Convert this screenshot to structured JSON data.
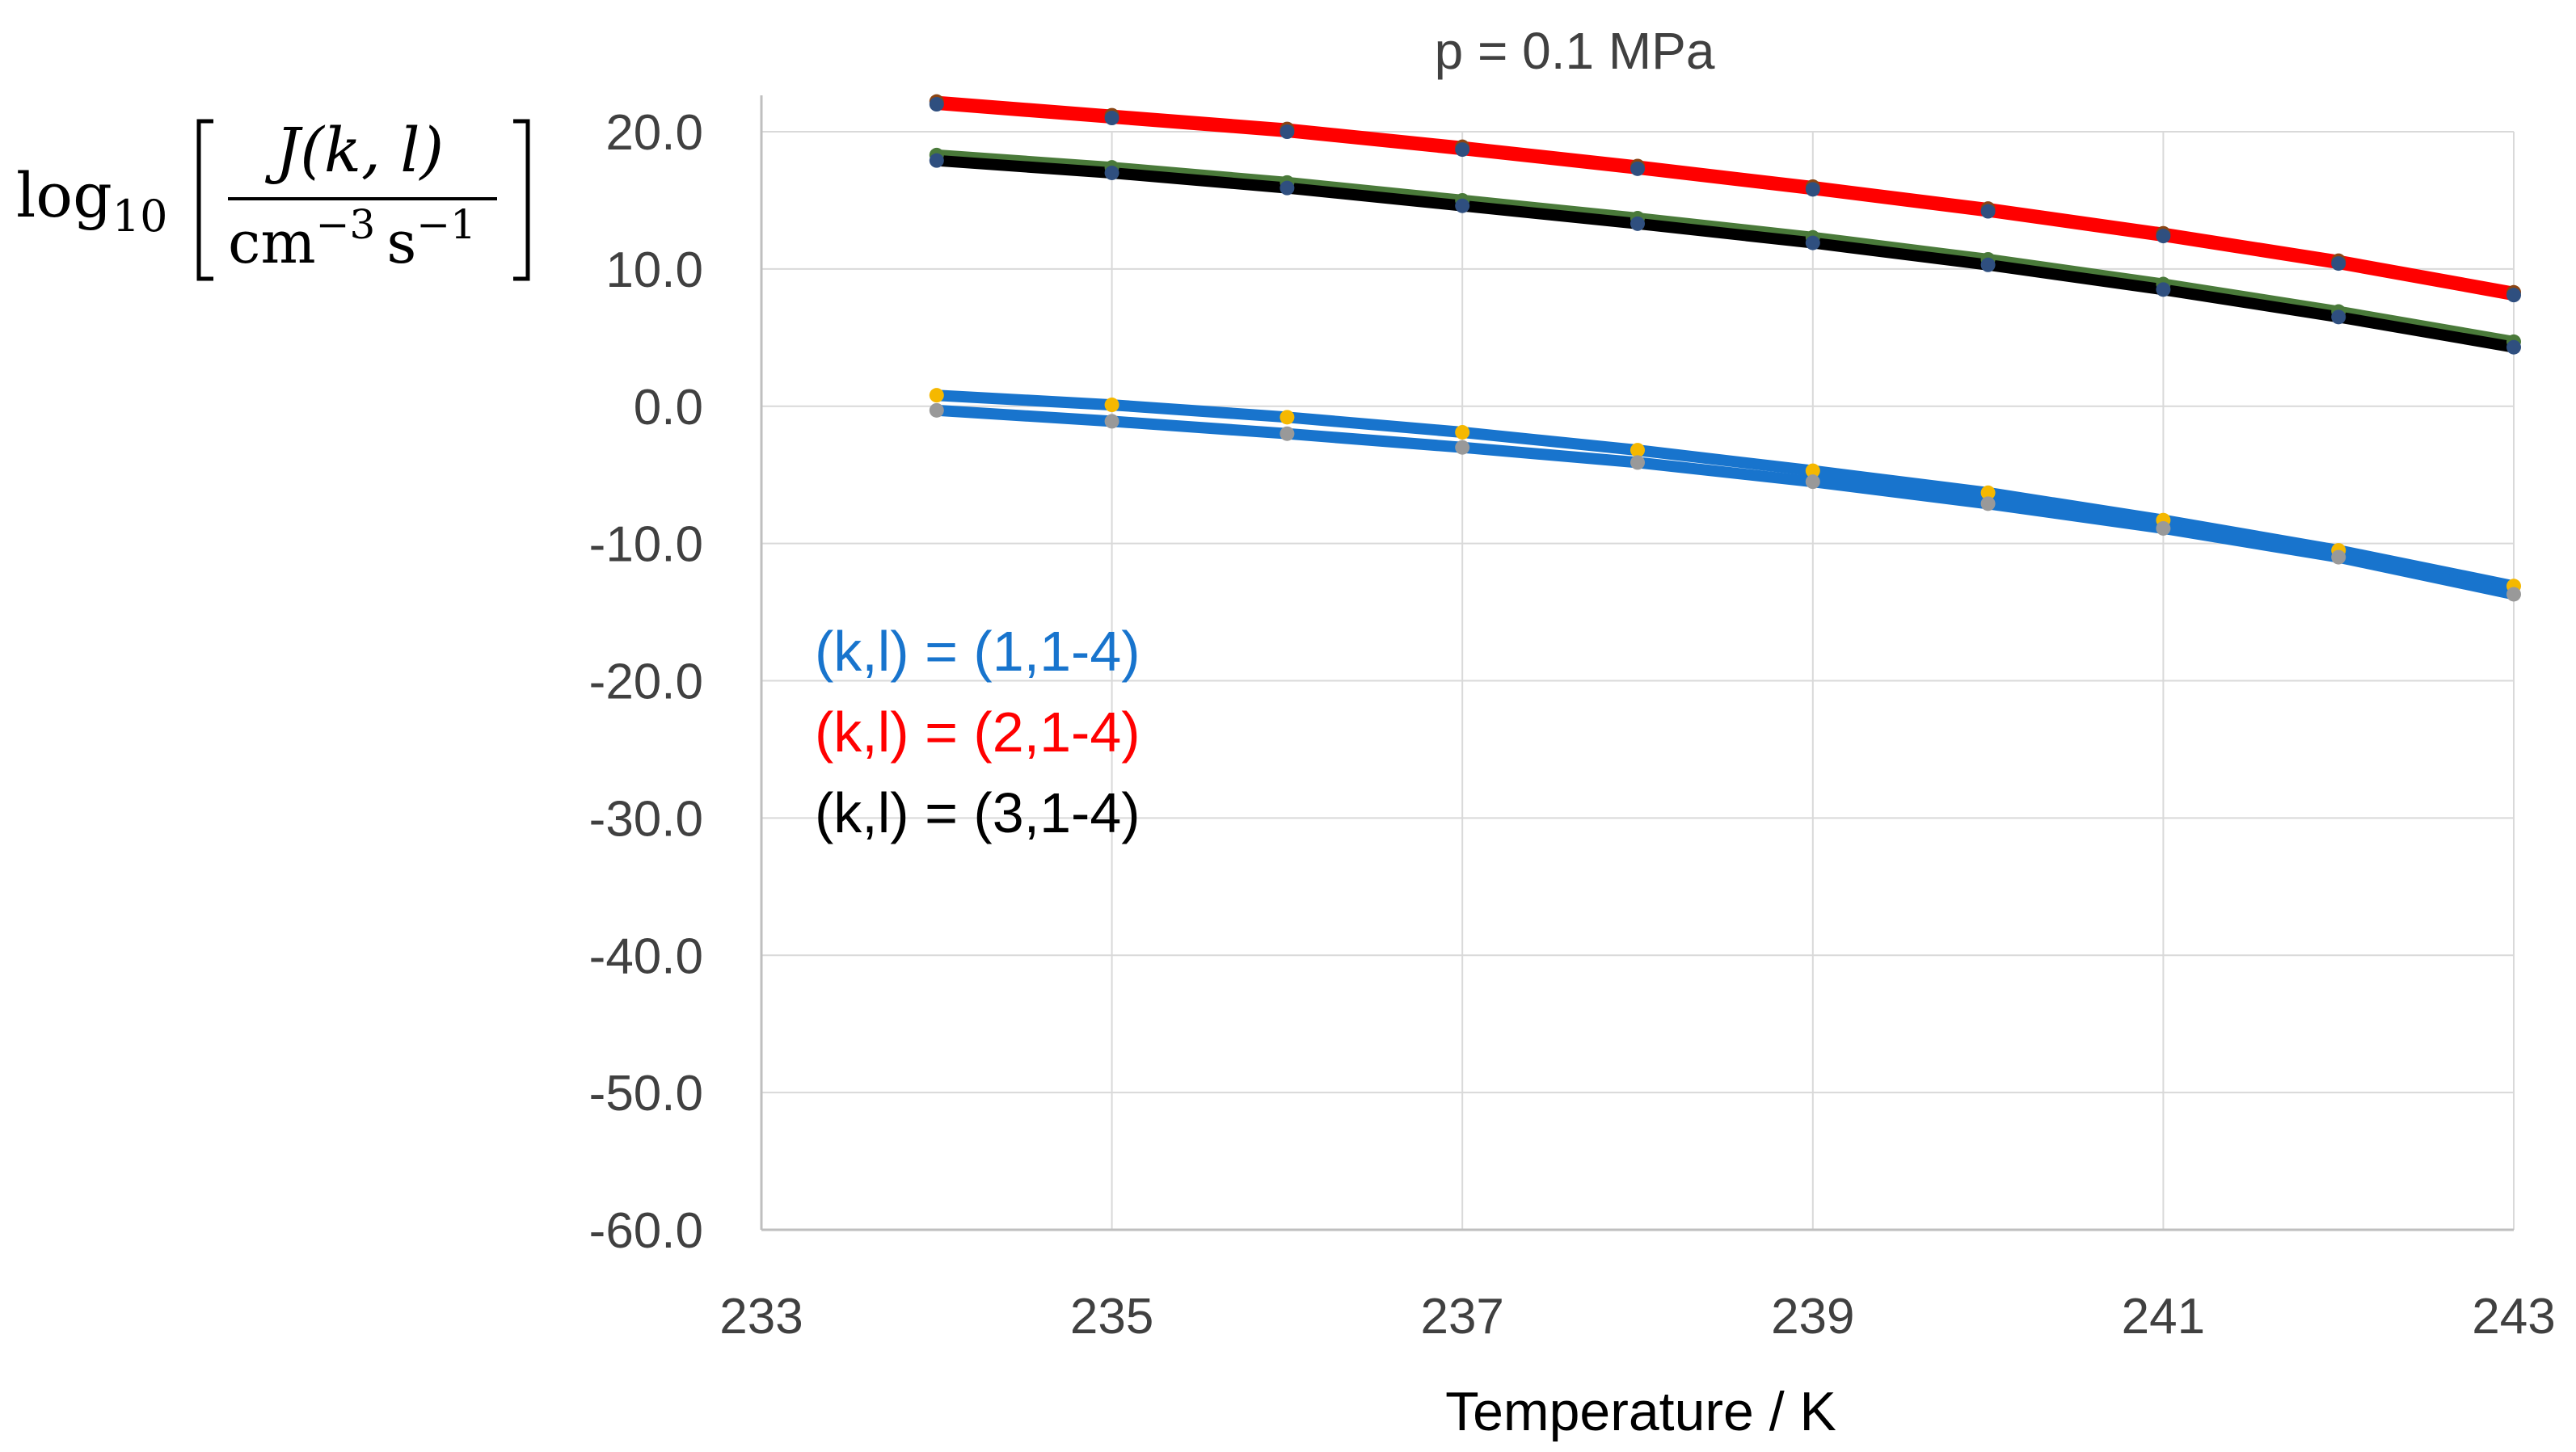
{
  "chart_data": {
    "type": "line",
    "title": "p = 0.1 MPa",
    "xlabel": "Temperature / K",
    "ylabel": {
      "log": "log",
      "sub": "10",
      "numerator": "J(k, l)",
      "denominator_cm": "cm",
      "denominator_cm_exp": "−3",
      "denominator_s": "s",
      "denominator_s_exp": "−1"
    },
    "xlim": [
      233,
      243
    ],
    "ylim": [
      -60,
      20
    ],
    "x_ticks": [
      "233",
      "235",
      "237",
      "239",
      "241",
      "243"
    ],
    "x_tick_values": [
      233,
      235,
      237,
      239,
      241,
      243
    ],
    "y_ticks": [
      "20.0",
      "10.0",
      "0.0",
      "-10.0",
      "-20.0",
      "-30.0",
      "-40.0",
      "-50.0",
      "-60.0"
    ],
    "y_tick_values": [
      20,
      10,
      0,
      -10,
      -20,
      -30,
      -40,
      -50,
      -60
    ],
    "x": [
      234,
      235,
      236,
      237,
      238,
      239,
      240,
      241,
      242,
      243
    ],
    "series": [
      {
        "name": "(2,1)",
        "group": "k=2",
        "line_color": "#ff0000",
        "marker_color": "#8b4513",
        "values": [
          22.2,
          21.2,
          20.2,
          18.9,
          17.5,
          16.0,
          14.4,
          12.6,
          10.6,
          8.3
        ]
      },
      {
        "name": "(2,4)",
        "group": "k=2",
        "line_color": "#ff0000",
        "marker_color": "#2f4f7f",
        "values": [
          22.0,
          21.0,
          20.0,
          18.7,
          17.3,
          15.8,
          14.2,
          12.4,
          10.4,
          8.1
        ]
      },
      {
        "name": "(3,1)",
        "group": "k=3",
        "line_color": "#4a7a3a",
        "marker_color": "#4a7a3a",
        "values": [
          18.3,
          17.4,
          16.3,
          15.0,
          13.7,
          12.3,
          10.7,
          8.9,
          6.9,
          4.7
        ]
      },
      {
        "name": "(3,4)",
        "group": "k=3",
        "line_color": "#000000",
        "marker_color": "#2f4f7f",
        "values": [
          17.9,
          17.0,
          15.9,
          14.6,
          13.3,
          11.9,
          10.3,
          8.5,
          6.5,
          4.3
        ]
      },
      {
        "name": "(1,1)",
        "group": "k=1",
        "line_color": "#1874cd",
        "marker_color": "#f5b800",
        "values": [
          0.8,
          0.1,
          -0.8,
          -1.9,
          -3.2,
          -4.7,
          -6.3,
          -8.3,
          -10.5,
          -13.1
        ]
      },
      {
        "name": "(1,4)",
        "group": "k=1",
        "line_color": "#1874cd",
        "marker_color": "#999999",
        "values": [
          -0.3,
          -1.1,
          -2.0,
          -3.0,
          -4.1,
          -5.5,
          -7.1,
          -8.9,
          -11.0,
          -13.7
        ]
      }
    ],
    "legend": [
      {
        "label": "(k,l) = (1,1-4)",
        "color": "#1874cd"
      },
      {
        "label": "(k,l) = (2,1-4)",
        "color": "#ff0000"
      },
      {
        "label": "(k,l) = (3,1-4)",
        "color": "#000000"
      }
    ],
    "grid": true,
    "legend_position": "left, inside plot"
  }
}
